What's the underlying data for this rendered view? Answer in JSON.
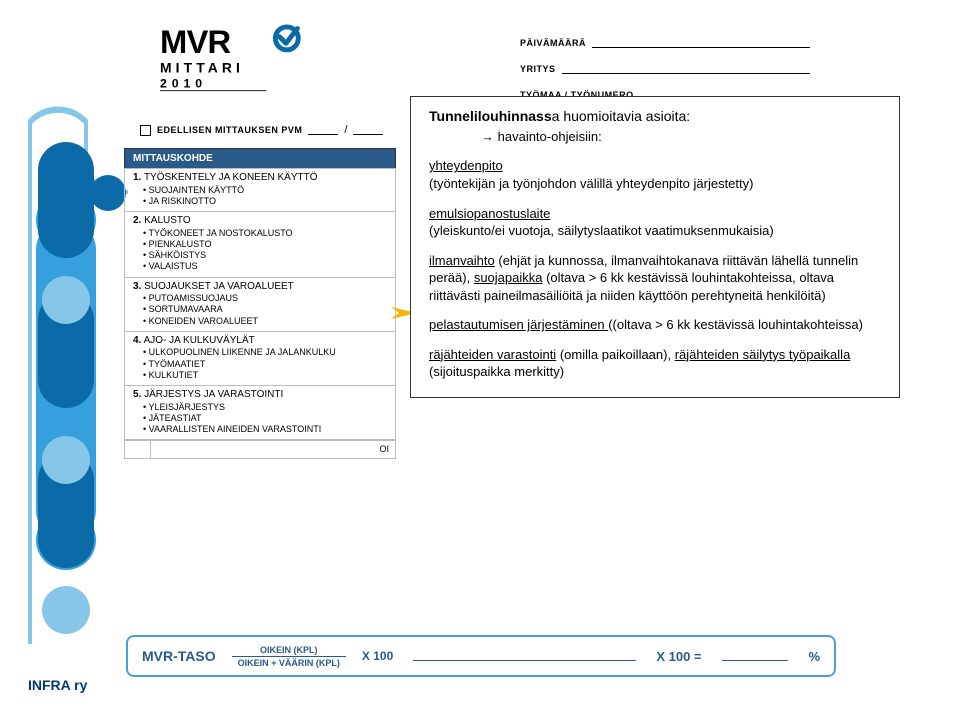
{
  "logo": {
    "line1": "MVR",
    "line2": "MITTARI",
    "year": "2010",
    "text_color": "#000000",
    "icon_colors": {
      "ring": "#0b6aa8",
      "tick": "#0b6aa8"
    }
  },
  "header_fields": [
    {
      "label": "PÄIVÄMÄÄRÄ"
    },
    {
      "label": "YRITYS"
    },
    {
      "label": "TYÖMAA / TYÖNUMERO"
    }
  ],
  "edellisen": {
    "label": "EDELLISEN MITTAUKSEN PVM"
  },
  "table": {
    "header": "MITTAUSKOHDE",
    "header_bg": "#2a5a8a",
    "header_fg": "#ffffff",
    "border_color": "#bdbdbd",
    "sections": [
      {
        "num": "1.",
        "title": "TYÖSKENTELY JA KONEEN KÄYTTÖ",
        "subs": [
          "SUOJAINTEN KÄYTTÖ",
          "JA RISKINOTTO"
        ]
      },
      {
        "num": "2.",
        "title": "KALUSTO",
        "subs": [
          "TYÖKONEET JA NOSTOKALUSTO",
          "PIENKALUSTO",
          "SÄHKÖISTYS",
          "VALAISTUS"
        ]
      },
      {
        "num": "3.",
        "title": "SUOJAUKSET JA VAROALUEET",
        "subs": [
          "PUTOAMISSUOJAUS",
          "SORTUMAVAARA",
          "KONEIDEN VAROALUEET"
        ]
      },
      {
        "num": "4.",
        "title": "AJO- JA KULKUVÄYLÄT",
        "subs": [
          "ULKOPUOLINEN LIIKENNE JA JALANKULKU",
          "TYÖMAATIET",
          "KULKUTIET"
        ]
      },
      {
        "num": "5.",
        "title": "JÄRJESTYS JA VARASTOINTI",
        "subs": [
          "YLEISJÄRJESTYS",
          "JÄTEASTIAT",
          "VAARALLISTEN AINEIDEN VARASTOINTI"
        ]
      }
    ],
    "last_split_text": "OI"
  },
  "callout": {
    "title_strong": "Tunnelilouhinnass",
    "title_rest": "a huomioitavia asioita:",
    "indent_line": "havainto-ohjeisiin:",
    "paras": [
      {
        "u": "yhteydenpito",
        "rest": "(työntekijän ja työnjohdon välillä yhteydenpito järjestetty)"
      },
      {
        "u": "emulsiopanostuslaite",
        "rest": "(yleiskunto/ei vuotoja, säilytyslaatikot vaatimuksenmukaisia)"
      },
      {
        "plain_before": "",
        "u": "ilmanvaihto",
        "rest_a": " (ehjät ja kunnossa, ilmanvaihtokanava riittävän lähellä tunnelin perää), ",
        "u2": "suojapaikka",
        "rest_b": " (oltava > 6 kk kestävissä louhintakohteissa, oltava riittävästi paineilmasäiliöitä ja niiden käyttöön perehtyneitä henkilöitä)"
      },
      {
        "u": "pelastautumisen järjestäminen ",
        "rest": "((oltava > 6 kk kestävissä louhintakohteissa)"
      },
      {
        "u": "räjähteiden varastointi",
        "rest_a": " (omilla paikoillaan), ",
        "u2": "räjähteiden säilytys työpaikalla",
        "rest_b": " (sijoituspaikka merkitty)"
      }
    ],
    "arrow_color": "#f5b400"
  },
  "formula": {
    "label": "MVR-TASO",
    "num": "OIKEIN (KPL)",
    "den": "OIKEIN + VÄÄRIN (KPL)",
    "x100a": "X 100",
    "x100b": "X 100 =",
    "pct": "%",
    "border_color": "#49a0d8",
    "text_color": "#2a5a8a"
  },
  "infra": {
    "text": "INFRA ry",
    "color": "#003a70"
  },
  "edge": {
    "light": "#86c6e8",
    "mid": "#35a0dd",
    "dark": "#0b6aa8"
  }
}
